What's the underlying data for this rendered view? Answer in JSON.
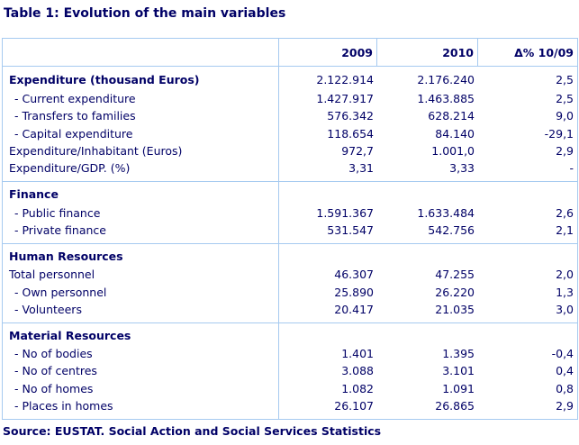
{
  "title": "Table 1: Evolution of the main variables",
  "source": "Source: EUSTAT. Social Action and Social Services Statistics",
  "colors": {
    "text_navy": "#000066",
    "border_light_blue": "#A6CAF0",
    "background": "#FFFFFF"
  },
  "table": {
    "columns": [
      "",
      "2009",
      "2010",
      "Δ% 10/09"
    ],
    "sections": [
      {
        "header": "",
        "rows": [
          {
            "label": "Expenditure (thousand Euros)",
            "style": "main-bold",
            "cells": [
              "2.122.914",
              "2.176.240",
              "2,5"
            ]
          },
          {
            "label": "- Current expenditure",
            "style": "sub",
            "cells": [
              "1.427.917",
              "1.463.885",
              "2,5"
            ]
          },
          {
            "label": "- Transfers to families",
            "style": "sub",
            "cells": [
              "576.342",
              "628.214",
              "9,0"
            ]
          },
          {
            "label": "- Capital expenditure",
            "style": "sub",
            "cells": [
              "118.654",
              "84.140",
              "-29,1"
            ]
          },
          {
            "label": "Expenditure/Inhabitant (Euros)",
            "style": "main",
            "cells": [
              "972,7",
              "1.001,0",
              "2,9"
            ]
          },
          {
            "label": "Expenditure/GDP. (%)",
            "style": "main",
            "cells": [
              "3,31",
              "3,33",
              "-"
            ]
          }
        ]
      },
      {
        "header": "Finance",
        "rows": [
          {
            "label": "- Public finance",
            "style": "sub",
            "cells": [
              "1.591.367",
              "1.633.484",
              "2,6"
            ]
          },
          {
            "label": "- Private finance",
            "style": "sub",
            "cells": [
              "531.547",
              "542.756",
              "2,1"
            ]
          }
        ]
      },
      {
        "header": "Human Resources",
        "rows": [
          {
            "label": "Total personnel",
            "style": "main",
            "cells": [
              "46.307",
              "47.255",
              "2,0"
            ]
          },
          {
            "label": "- Own personnel",
            "style": "sub",
            "cells": [
              "25.890",
              "26.220",
              "1,3"
            ]
          },
          {
            "label": "- Volunteers",
            "style": "sub",
            "cells": [
              "20.417",
              "21.035",
              "3,0"
            ]
          }
        ]
      },
      {
        "header": "Material Resources",
        "rows": [
          {
            "label": "- No of bodies",
            "style": "sub",
            "cells": [
              "1.401",
              "1.395",
              "-0,4"
            ]
          },
          {
            "label": "- No of centres",
            "style": "sub",
            "cells": [
              "3.088",
              "3.101",
              "0,4"
            ]
          },
          {
            "label": "- No of homes",
            "style": "sub",
            "cells": [
              "1.082",
              "1.091",
              "0,8"
            ]
          },
          {
            "label": "- Places in homes",
            "style": "sub",
            "cells": [
              "26.107",
              "26.865",
              "2,9"
            ]
          }
        ]
      }
    ]
  }
}
